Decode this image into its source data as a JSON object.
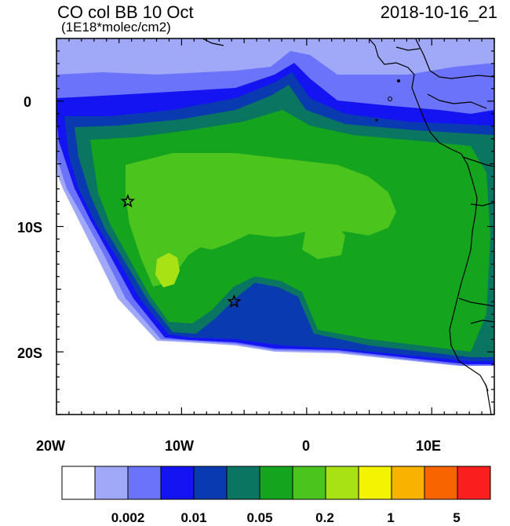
{
  "title": {
    "main": "CO col BB 10 Oct",
    "date": "2018-10-16_21",
    "units": "(1E18*molec/cm2)"
  },
  "axes": {
    "x_ticks": [
      "20W",
      "10W",
      "0",
      "10E"
    ],
    "y_ticks": [
      "0",
      "10S",
      "20S"
    ],
    "lon_range": [
      -20,
      15
    ],
    "lat_range": [
      -25,
      5
    ]
  },
  "colorbar": {
    "colors": [
      "#ffffff",
      "#a0a8f8",
      "#6b73fb",
      "#1414f2",
      "#0a3aaf",
      "#0a7560",
      "#14a41e",
      "#4cc41e",
      "#a8e214",
      "#f4f400",
      "#f8b200",
      "#f86400",
      "#fa1e1e"
    ],
    "labels": [
      "0.002",
      "0.01",
      "0.05",
      "0.2",
      "1",
      "5"
    ]
  },
  "markers": [
    {
      "name": "star-marker-north",
      "lon": -14.3,
      "lat": -8.0
    },
    {
      "name": "star-marker-south",
      "lon": -5.8,
      "lat": -16.0
    }
  ]
}
